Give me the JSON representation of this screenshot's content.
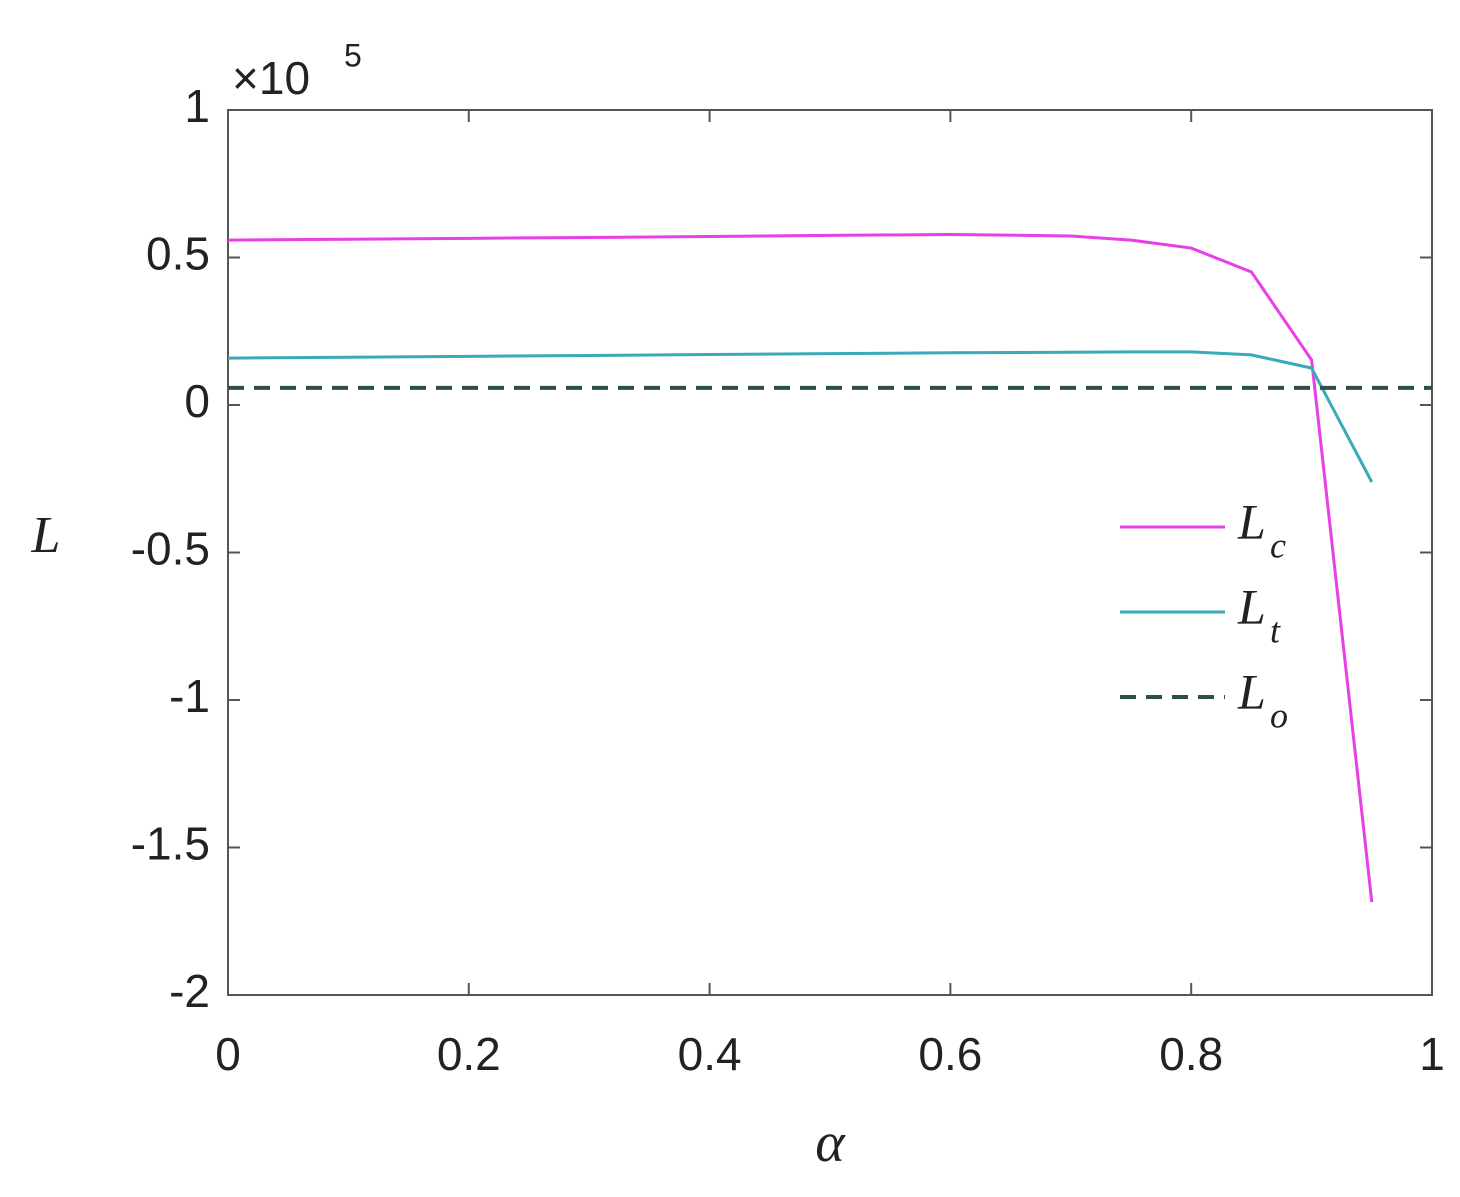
{
  "chart_data": {
    "type": "line",
    "y_label": "L",
    "x_label": "α",
    "y_multiplier": {
      "base": "×10",
      "exponent": "5"
    },
    "x": [
      0,
      0.1,
      0.2,
      0.3,
      0.4,
      0.5,
      0.6,
      0.7,
      0.75,
      0.8,
      0.85,
      0.9,
      0.95
    ],
    "series": [
      {
        "name": "L",
        "subscript": "c",
        "color": "#e640e6",
        "dash": false,
        "values": [
          0.559,
          0.562,
          0.565,
          0.568,
          0.571,
          0.575,
          0.578,
          0.573,
          0.559,
          0.532,
          0.451,
          0.153,
          -1.685
        ]
      },
      {
        "name": "L",
        "subscript": "t",
        "color": "#3aa9b8",
        "dash": false,
        "values": [
          0.159,
          0.162,
          0.165,
          0.168,
          0.171,
          0.174,
          0.177,
          0.179,
          0.18,
          0.18,
          0.17,
          0.125,
          -0.261
        ]
      },
      {
        "name": "L",
        "subscript": "o",
        "color": "#2e5041",
        "dash": true,
        "x": [
          0,
          1
        ],
        "values": [
          0.058,
          0.058
        ]
      }
    ],
    "xlim": [
      0,
      1
    ],
    "xticks": [
      0,
      0.2,
      0.4,
      0.6,
      0.8,
      1
    ],
    "ylim": [
      -2,
      1
    ],
    "yticks": [
      -2,
      -1.5,
      -1,
      -0.5,
      0,
      0.5,
      1
    ],
    "legend": "right",
    "grid": false
  }
}
